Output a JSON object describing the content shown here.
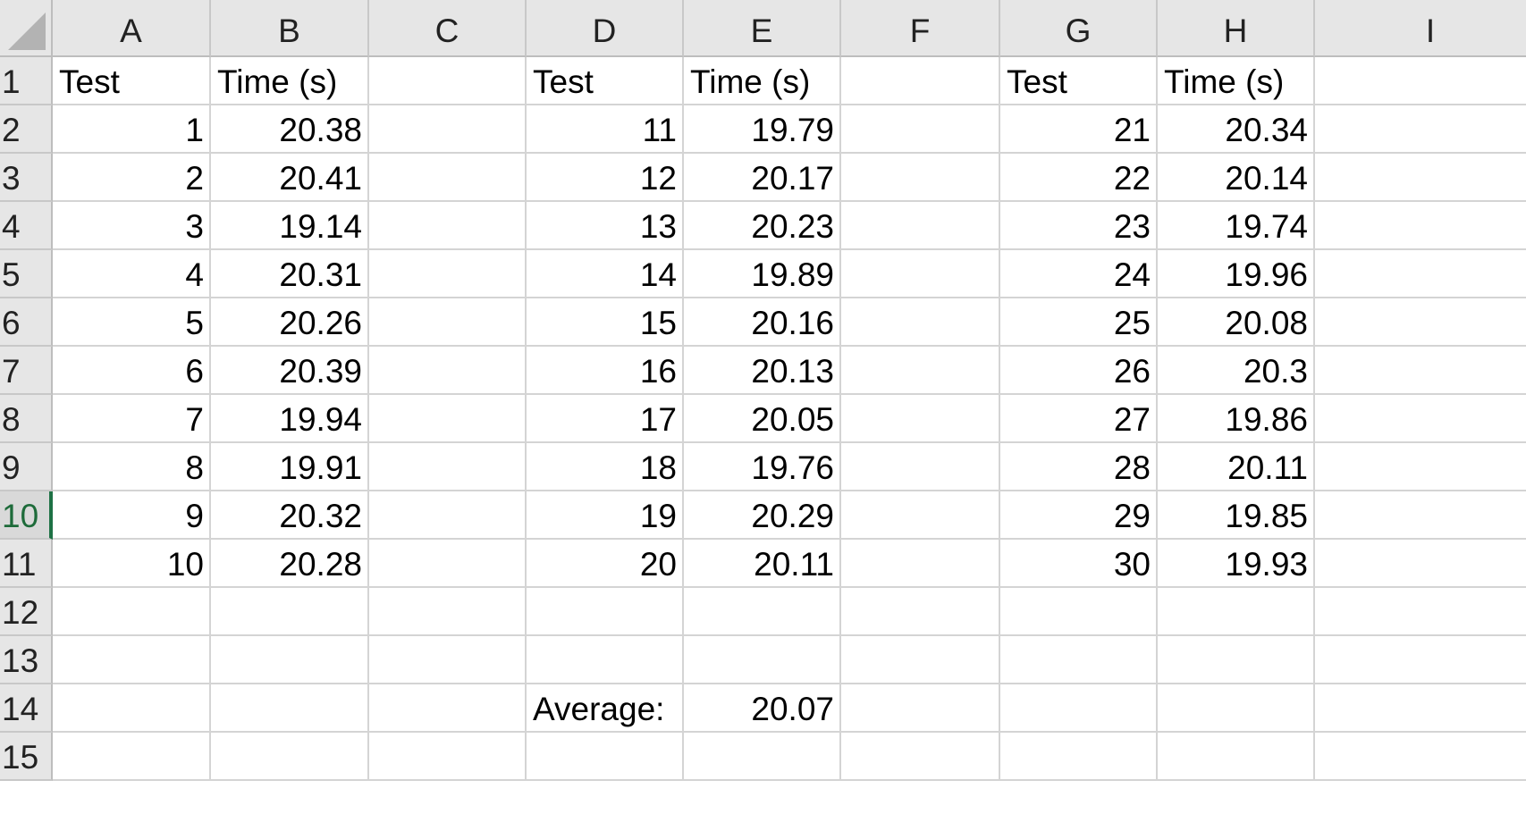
{
  "columns": [
    "A",
    "B",
    "C",
    "D",
    "E",
    "F",
    "G",
    "H",
    "I"
  ],
  "rows": [
    "1",
    "2",
    "3",
    "4",
    "5",
    "6",
    "7",
    "8",
    "9",
    "10",
    "11",
    "12",
    "13",
    "14",
    "15"
  ],
  "active_row": "10",
  "cells": [
    [
      "Test",
      "Time (s)",
      "",
      "Test",
      "Time (s)",
      "",
      "Test",
      "Time (s)",
      ""
    ],
    [
      "1",
      "20.38",
      "",
      "11",
      "19.79",
      "",
      "21",
      "20.34",
      ""
    ],
    [
      "2",
      "20.41",
      "",
      "12",
      "20.17",
      "",
      "22",
      "20.14",
      ""
    ],
    [
      "3",
      "19.14",
      "",
      "13",
      "20.23",
      "",
      "23",
      "19.74",
      ""
    ],
    [
      "4",
      "20.31",
      "",
      "14",
      "19.89",
      "",
      "24",
      "19.96",
      ""
    ],
    [
      "5",
      "20.26",
      "",
      "15",
      "20.16",
      "",
      "25",
      "20.08",
      ""
    ],
    [
      "6",
      "20.39",
      "",
      "16",
      "20.13",
      "",
      "26",
      "20.3",
      ""
    ],
    [
      "7",
      "19.94",
      "",
      "17",
      "20.05",
      "",
      "27",
      "19.86",
      ""
    ],
    [
      "8",
      "19.91",
      "",
      "18",
      "19.76",
      "",
      "28",
      "20.11",
      ""
    ],
    [
      "9",
      "20.32",
      "",
      "19",
      "20.29",
      "",
      "29",
      "19.85",
      ""
    ],
    [
      "10",
      "20.28",
      "",
      "20",
      "20.11",
      "",
      "30",
      "19.93",
      ""
    ],
    [
      "",
      "",
      "",
      "",
      "",
      "",
      "",
      "",
      ""
    ],
    [
      "",
      "",
      "",
      "",
      "",
      "",
      "",
      "",
      ""
    ],
    [
      "",
      "",
      "",
      "Average:",
      "20.07",
      "",
      "",
      "",
      ""
    ],
    [
      "",
      "",
      "",
      "",
      "",
      "",
      "",
      "",
      ""
    ]
  ],
  "colors": {
    "header_bg": "#e6e6e6",
    "gridline": "#d4d4d4",
    "active_row_accent": "#1e7145"
  }
}
